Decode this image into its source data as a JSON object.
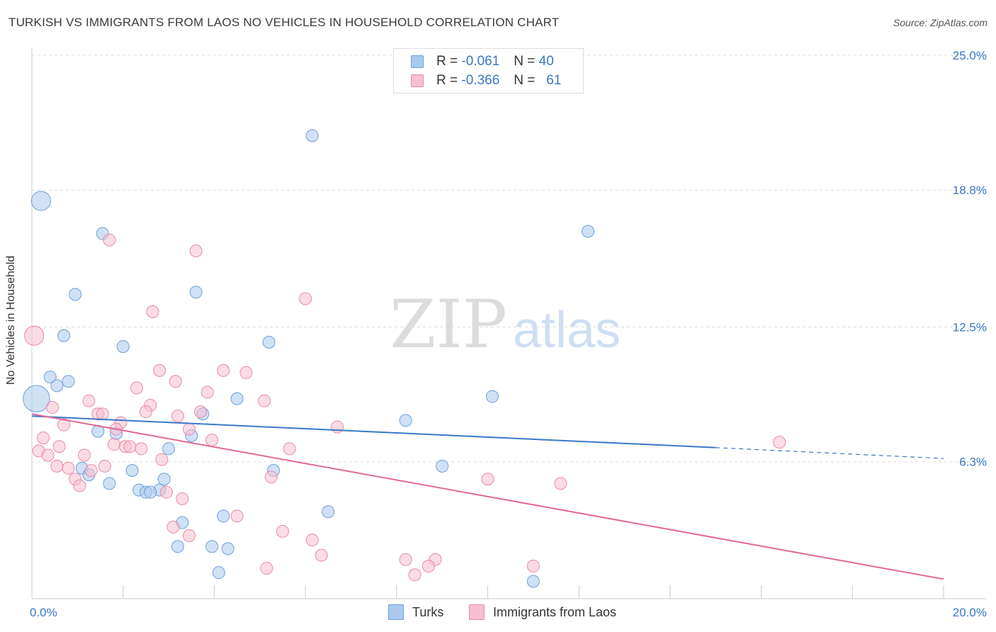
{
  "title": "TURKISH VS IMMIGRANTS FROM LAOS NO VEHICLES IN HOUSEHOLD CORRELATION CHART",
  "source": "Source: ZipAtlas.com",
  "watermark": {
    "zip": "ZIP",
    "atlas": "atlas"
  },
  "legend": {
    "rows": [
      {
        "r_label": "R =",
        "r_value": "-0.061",
        "n_label": "N =",
        "n_value": "40",
        "color": "#a9c9ee",
        "border": "#6f9fd6"
      },
      {
        "r_label": "R =",
        "r_value": "-0.366",
        "n_label": "N =",
        "n_value": "61",
        "color": "#f7bfd0",
        "border": "#e98aa8"
      }
    ]
  },
  "bottom_legend": [
    {
      "label": "Turks",
      "color": "#a9c9ee",
      "border": "#6f9fd6"
    },
    {
      "label": "Immigrants from Laos",
      "color": "#f7bfd0",
      "border": "#e98aa8"
    }
  ],
  "chart_data": {
    "type": "scatter",
    "title": "TURKISH VS IMMIGRANTS FROM LAOS NO VEHICLES IN HOUSEHOLD CORRELATION CHART",
    "xlabel": "",
    "ylabel": "No Vehicles in Household",
    "xlim": [
      0,
      20
    ],
    "ylim": [
      0,
      25
    ],
    "x_tick_labels": [
      "0.0%",
      "20.0%"
    ],
    "y_ticks": [
      6.3,
      12.5,
      18.8,
      25.0
    ],
    "y_tick_labels": [
      "6.3%",
      "12.5%",
      "18.8%",
      "25.0%"
    ],
    "grid": true,
    "series": [
      {
        "name": "Turks",
        "color": "#6f9fd6",
        "fill": "#a9c9ee",
        "trend": {
          "x": [
            0,
            15
          ],
          "y": [
            8.4,
            6.95
          ]
        },
        "trend_dashed": {
          "x": [
            15,
            20
          ],
          "y": [
            6.95,
            6.45
          ]
        },
        "points": [
          [
            0.2,
            18.3,
            1.6
          ],
          [
            0.1,
            9.2,
            2.2
          ],
          [
            1.55,
            16.8,
            1
          ],
          [
            6.15,
            21.3,
            1
          ],
          [
            12.2,
            16.9,
            1
          ],
          [
            0.95,
            14.0,
            1
          ],
          [
            3.6,
            14.1,
            1
          ],
          [
            0.7,
            12.1,
            1
          ],
          [
            2.0,
            11.6,
            1
          ],
          [
            5.2,
            11.8,
            1
          ],
          [
            0.4,
            10.2,
            1
          ],
          [
            0.8,
            10.0,
            1
          ],
          [
            0.55,
            9.8,
            1
          ],
          [
            4.5,
            9.2,
            1
          ],
          [
            10.1,
            9.3,
            1
          ],
          [
            3.75,
            8.5,
            1
          ],
          [
            8.2,
            8.2,
            1
          ],
          [
            1.45,
            7.7,
            1
          ],
          [
            1.85,
            7.6,
            1
          ],
          [
            3.5,
            7.5,
            1
          ],
          [
            3.0,
            6.9,
            1
          ],
          [
            1.1,
            6.0,
            1
          ],
          [
            1.25,
            5.7,
            1
          ],
          [
            2.2,
            5.9,
            1
          ],
          [
            5.3,
            5.9,
            1
          ],
          [
            9.0,
            6.1,
            1
          ],
          [
            1.7,
            5.3,
            1
          ],
          [
            2.9,
            5.5,
            1
          ],
          [
            2.35,
            5.0,
            1
          ],
          [
            2.5,
            4.9,
            1
          ],
          [
            2.8,
            5.0,
            1
          ],
          [
            6.5,
            4.0,
            1
          ],
          [
            4.2,
            3.8,
            1
          ],
          [
            3.3,
            3.5,
            1
          ],
          [
            3.2,
            2.4,
            1
          ],
          [
            3.95,
            2.4,
            1
          ],
          [
            4.3,
            2.3,
            1
          ],
          [
            4.1,
            1.2,
            1
          ],
          [
            11.0,
            0.8,
            1
          ],
          [
            2.6,
            4.9,
            1
          ]
        ]
      },
      {
        "name": "Immigrants from Laos",
        "color": "#e98aa8",
        "fill": "#f7bfd0",
        "trend": {
          "x": [
            0,
            20
          ],
          "y": [
            8.5,
            0.9
          ]
        },
        "points": [
          [
            0.05,
            12.1,
            1.6
          ],
          [
            1.7,
            16.5,
            1
          ],
          [
            3.6,
            16.0,
            1
          ],
          [
            6.0,
            13.8,
            1
          ],
          [
            2.65,
            13.2,
            1
          ],
          [
            2.8,
            10.5,
            1
          ],
          [
            4.2,
            10.5,
            1
          ],
          [
            4.7,
            10.4,
            1
          ],
          [
            3.15,
            10.0,
            1
          ],
          [
            2.3,
            9.7,
            1
          ],
          [
            3.85,
            9.5,
            1
          ],
          [
            1.25,
            9.1,
            1
          ],
          [
            5.1,
            9.1,
            1
          ],
          [
            0.45,
            8.8,
            1
          ],
          [
            2.6,
            8.9,
            1
          ],
          [
            1.45,
            8.5,
            1
          ],
          [
            1.55,
            8.5,
            1
          ],
          [
            2.5,
            8.6,
            1
          ],
          [
            3.2,
            8.4,
            1
          ],
          [
            3.7,
            8.6,
            1
          ],
          [
            0.7,
            8.0,
            1
          ],
          [
            1.95,
            8.1,
            1
          ],
          [
            6.7,
            7.9,
            1
          ],
          [
            1.85,
            7.8,
            1
          ],
          [
            3.45,
            7.8,
            1
          ],
          [
            0.25,
            7.4,
            1
          ],
          [
            1.8,
            7.1,
            1
          ],
          [
            2.05,
            7.0,
            1
          ],
          [
            3.95,
            7.3,
            1
          ],
          [
            0.6,
            7.0,
            1
          ],
          [
            2.15,
            7.0,
            1
          ],
          [
            2.4,
            6.9,
            1
          ],
          [
            5.65,
            6.9,
            1
          ],
          [
            16.4,
            7.2,
            1
          ],
          [
            0.15,
            6.8,
            1
          ],
          [
            0.35,
            6.6,
            1
          ],
          [
            1.15,
            6.6,
            1
          ],
          [
            2.85,
            6.4,
            1
          ],
          [
            0.55,
            6.1,
            1
          ],
          [
            0.8,
            6.0,
            1
          ],
          [
            1.6,
            6.1,
            1
          ],
          [
            1.3,
            5.9,
            1
          ],
          [
            0.95,
            5.5,
            1
          ],
          [
            5.25,
            5.6,
            1
          ],
          [
            10.0,
            5.5,
            1
          ],
          [
            11.6,
            5.3,
            1
          ],
          [
            1.05,
            5.2,
            1
          ],
          [
            2.95,
            4.9,
            1
          ],
          [
            3.3,
            4.6,
            1
          ],
          [
            4.5,
            3.8,
            1
          ],
          [
            3.1,
            3.3,
            1
          ],
          [
            5.5,
            3.1,
            1
          ],
          [
            3.45,
            2.9,
            1
          ],
          [
            6.15,
            2.7,
            1
          ],
          [
            6.35,
            2.0,
            1
          ],
          [
            8.2,
            1.8,
            1
          ],
          [
            8.85,
            1.8,
            1
          ],
          [
            8.7,
            1.5,
            1
          ],
          [
            5.15,
            1.4,
            1
          ],
          [
            11.0,
            1.5,
            1
          ],
          [
            8.4,
            1.1,
            1
          ]
        ]
      }
    ]
  }
}
